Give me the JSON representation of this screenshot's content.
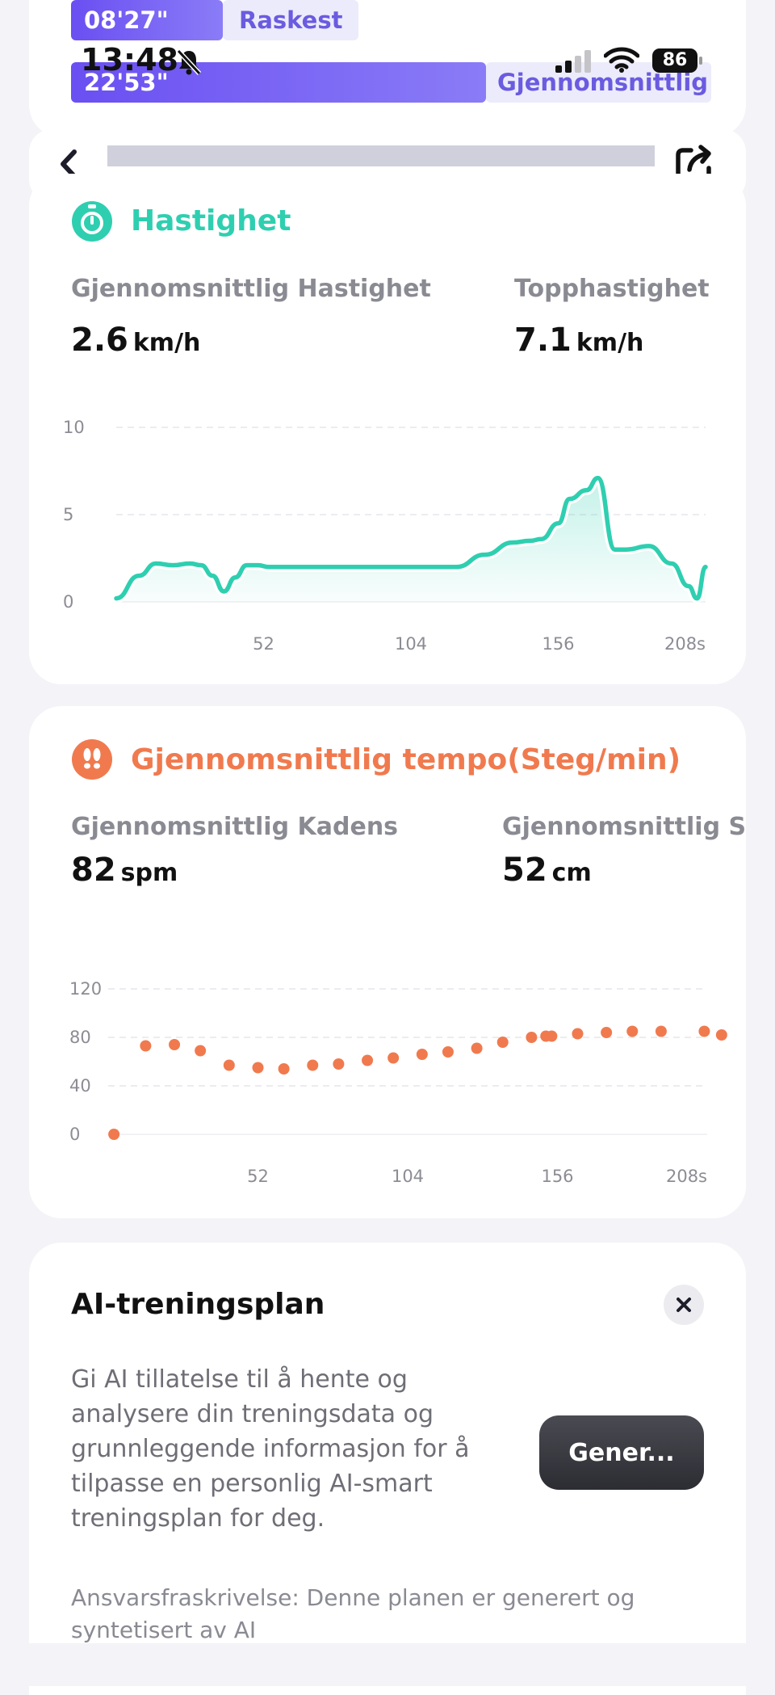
{
  "pace": {
    "fastest_value": "08'27\"",
    "fastest_label": "Raskest",
    "average_value": "22'53\"",
    "average_label": "Gjennomsnittlig"
  },
  "status_bar": {
    "time": "13:48",
    "battery": "86"
  },
  "speed": {
    "title": "Hastighet",
    "avg_label": "Gjennomsnittlig Hastighet",
    "avg_value": "2.6",
    "avg_unit": "km/h",
    "top_label": "Topphastighet",
    "top_value": "7.1",
    "top_unit": "km/h",
    "accent": "#2ecfb0"
  },
  "tempo": {
    "title": "Gjennomsnittlig tempo(Steg/min)",
    "cadence_label": "Gjennomsnittlig Kadens",
    "cadence_value": "82",
    "cadence_unit": "spm",
    "stride_label": "Gjennomsnittlig Skrittlengde",
    "stride_value": "52",
    "stride_unit": "cm",
    "accent": "#f07a4e"
  },
  "ai_plan": {
    "title": "AI-treningsplan",
    "description": "Gi AI tillatelse til å hente og analysere din treningsdata og grunnleggende informasjon for å tilpasse en personlig AI-smart treningsplan for deg.",
    "button_label": "Gener...",
    "disclaimer": "Ansvarsfraskrivelse: Denne planen er generert og syntetisert av AI"
  },
  "chart_data": [
    {
      "type": "area",
      "title": "Hastighet",
      "ylabel": "km/h",
      "xlabel": "s",
      "ylim": [
        0,
        10
      ],
      "xlim": [
        0,
        208
      ],
      "y_ticks": [
        "0",
        "5",
        "10"
      ],
      "x_ticks": [
        {
          "value": 52,
          "label": "52"
        },
        {
          "value": 104,
          "label": "104"
        },
        {
          "value": 156,
          "label": "156"
        },
        {
          "value": 208,
          "label": "208s"
        }
      ],
      "x": [
        0,
        8,
        14,
        20,
        26,
        30,
        34,
        38,
        42,
        46,
        50,
        54,
        58,
        66,
        80,
        90,
        100,
        110,
        120,
        130,
        140,
        146,
        150,
        156,
        160,
        166,
        170,
        176,
        180,
        188,
        196,
        202,
        205,
        208
      ],
      "values": [
        0.2,
        1.5,
        2.2,
        2.1,
        2.2,
        2.1,
        1.5,
        0.6,
        1.4,
        2.1,
        2.1,
        2.0,
        2.0,
        2.0,
        2.0,
        2.0,
        2.0,
        2.0,
        2.0,
        2.7,
        3.4,
        3.5,
        3.6,
        4.5,
        5.9,
        6.4,
        7.1,
        3.0,
        3.0,
        3.2,
        2.2,
        0.9,
        0.2,
        2.0
      ]
    },
    {
      "type": "scatter",
      "title": "Gjennomsnittlig tempo(Steg/min)",
      "ylabel": "Steg/min",
      "xlabel": "s",
      "ylim": [
        0,
        120
      ],
      "xlim": [
        0,
        208
      ],
      "y_ticks": [
        "0",
        "40",
        "80",
        "120"
      ],
      "x_ticks": [
        {
          "value": 52,
          "label": "52"
        },
        {
          "value": 104,
          "label": "104"
        },
        {
          "value": 156,
          "label": "156"
        },
        {
          "value": 208,
          "label": "208s"
        }
      ],
      "x": [
        2,
        13,
        23,
        32,
        42,
        52,
        61,
        71,
        80,
        90,
        99,
        109,
        118,
        128,
        137,
        147,
        152,
        154,
        163,
        173,
        182,
        192,
        207,
        213
      ],
      "values": [
        0,
        73,
        74,
        69,
        57,
        55,
        54,
        57,
        58,
        61,
        63,
        66,
        68,
        71,
        76,
        80,
        81,
        81,
        83,
        84,
        85,
        85,
        85,
        82
      ]
    }
  ]
}
